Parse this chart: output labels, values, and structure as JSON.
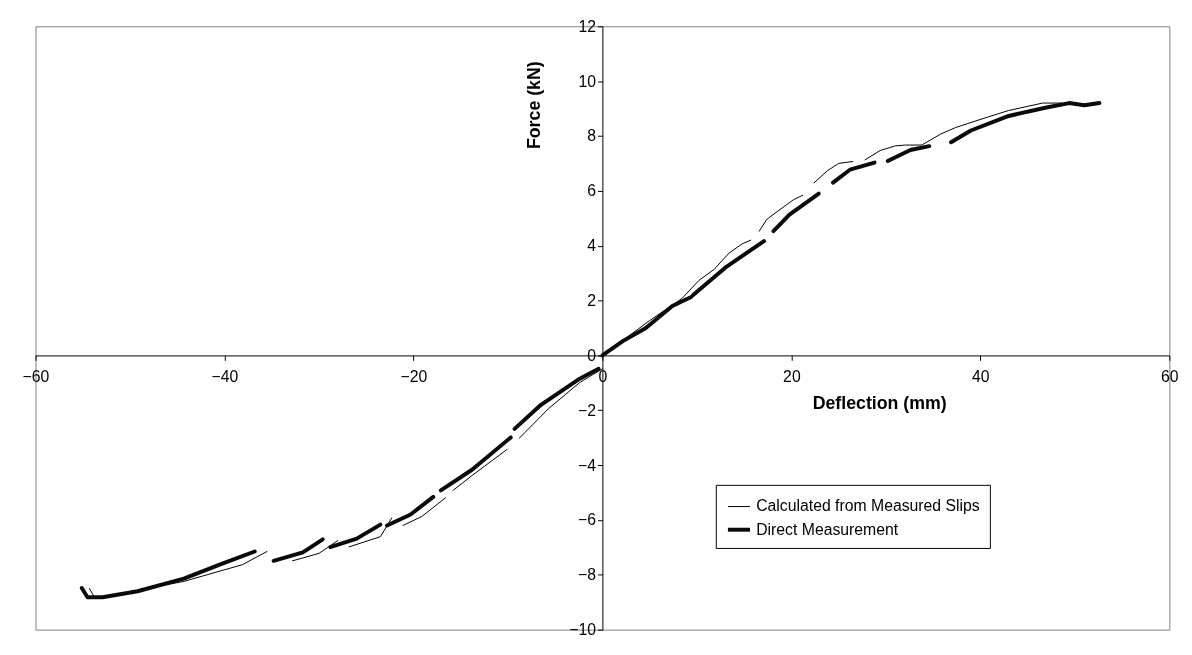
{
  "chart_data": {
    "type": "line",
    "xlabel": "Deflection (mm)",
    "ylabel": "Force (kN)",
    "xlim": [
      -60,
      60
    ],
    "ylim": [
      -10,
      12
    ],
    "xticks": [
      -60,
      -40,
      -20,
      0,
      20,
      40,
      60
    ],
    "yticks": [
      -10,
      -8,
      -6,
      -4,
      -2,
      0,
      2,
      4,
      6,
      8,
      10,
      12
    ],
    "grid": false,
    "legend": "bottom right",
    "marker": "none",
    "line_style": "solid",
    "series": [
      {
        "name": "Calculated from Measured Slips",
        "color": "#000000",
        "x": [
          0,
          -2.4,
          -5.7,
          -8.8,
          null,
          -10.1,
          -13.8,
          -15.8,
          null,
          -16.6,
          -19.1,
          -21.1,
          null,
          -22.3,
          -23.5,
          -26.8,
          null,
          -28,
          -30,
          -32.8,
          null,
          -35.5,
          -38.1,
          -44.3,
          -50.3,
          -53.7,
          -54.3,
          null,
          0,
          5,
          8.4,
          10.2,
          11.8,
          13.4,
          14.8,
          15.7,
          null,
          16.6,
          17.4,
          18.6,
          20.2,
          21.2,
          null,
          22.4,
          23.8,
          25,
          26.5,
          null,
          27.8,
          29.4,
          31,
          32.1,
          33.8,
          35.8,
          37.4,
          40.6,
          43,
          46.6,
          48.6
        ],
        "values": [
          -0.49,
          -0.99,
          -1.94,
          -3.02,
          null,
          -3.43,
          -4.38,
          -4.92,
          null,
          -5.19,
          -5.87,
          -6.2,
          null,
          -5.93,
          -6.61,
          -6.98,
          null,
          -6.75,
          -7.22,
          -7.49,
          null,
          -7.15,
          -7.63,
          -8.24,
          -8.64,
          -8.85,
          -8.5,
          null,
          0,
          1.27,
          2.07,
          2.73,
          3.13,
          3.73,
          4.07,
          4.2,
          null,
          4.53,
          4.96,
          5.27,
          5.67,
          5.84,
          null,
          6.29,
          6.73,
          7.0,
          7.07,
          null,
          7.13,
          7.47,
          7.64,
          7.67,
          7.67,
          8.07,
          8.31,
          8.67,
          8.93,
          9.2,
          9.2
        ]
      },
      {
        "name": "Direct Measurement",
        "color": "#0a0a0a",
        "x": [
          -0.4,
          -2.4,
          -6.5,
          -9.3,
          null,
          -9.7,
          -13.8,
          -17.1,
          null,
          -17.9,
          -20.3,
          -22.8,
          null,
          -23.5,
          -26,
          -28.8,
          null,
          -29.6,
          -31.7,
          -34.8,
          null,
          -36.8,
          -40.3,
          -44.3,
          -49.2,
          -52.9,
          -54.5,
          -55.1,
          null,
          0,
          2.2,
          4.6,
          7.4,
          9.4,
          null,
          9.6,
          13,
          17.1,
          null,
          18.1,
          19.8,
          22.9,
          null,
          24.4,
          26.2,
          28.8,
          null,
          30.2,
          32.6,
          34.6,
          null,
          36.9,
          39,
          43,
          47,
          49.4,
          51,
          52.6
        ],
        "values": [
          -0.49,
          -0.85,
          -1.8,
          -2.68,
          null,
          -2.99,
          -4.17,
          -4.92,
          null,
          -5.16,
          -5.8,
          -6.2,
          null,
          -6.17,
          -6.68,
          -6.99,
          null,
          -6.71,
          -7.18,
          -7.49,
          null,
          -7.15,
          -7.6,
          -8.14,
          -8.6,
          -8.82,
          -8.82,
          -8.48,
          null,
          0,
          0.53,
          1.0,
          1.8,
          2.13,
          null,
          2.2,
          3.2,
          4.17,
          null,
          4.53,
          5.13,
          5.9,
          null,
          6.3,
          6.77,
          7.03,
          null,
          7.09,
          7.49,
          7.63,
          null,
          7.77,
          8.2,
          8.73,
          9.04,
          9.2,
          9.12,
          9.2
        ]
      }
    ]
  }
}
